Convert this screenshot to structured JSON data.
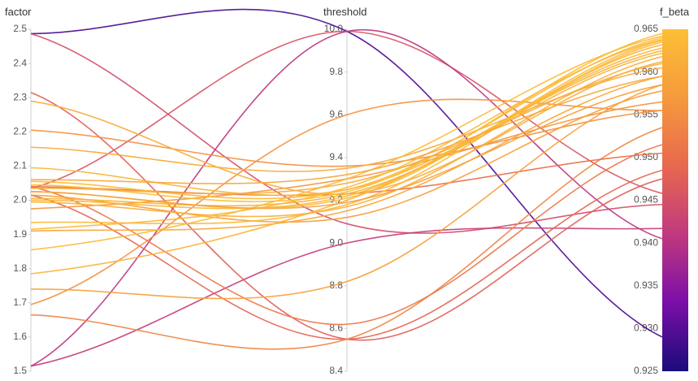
{
  "chart_data": {
    "type": "parallel_coordinates",
    "axes": [
      {
        "name": "factor",
        "range": [
          1.5,
          2.5
        ],
        "ticks": [
          "1.5",
          "1.6",
          "1.7",
          "1.8",
          "1.9",
          "2.0",
          "2.1",
          "2.2",
          "2.3",
          "2.4",
          "2.5"
        ]
      },
      {
        "name": "threshold",
        "range": [
          8.4,
          10.0
        ],
        "ticks": [
          "8.4",
          "8.6",
          "8.8",
          "9.0",
          "9.2",
          "9.4",
          "9.6",
          "9.8",
          "10.0"
        ]
      },
      {
        "name": "f_beta",
        "range": [
          0.925,
          0.965
        ],
        "ticks": [
          "0.925",
          "0.930",
          "0.935",
          "0.940",
          "0.945",
          "0.950",
          "0.955",
          "0.960",
          "0.965"
        ]
      }
    ],
    "color_scale": {
      "axis": "f_beta",
      "stops": [
        "#0d0887",
        "#5b02a3",
        "#9a179b",
        "#cb4678",
        "#eb7852",
        "#fbb32f",
        "#f0f921"
      ],
      "display_stops": [
        "#1a0c7a",
        "#7a0ea8",
        "#c0397e",
        "#e8684f",
        "#f59a3c",
        "#fdbf36"
      ]
    },
    "series": [
      {
        "values": [
          2.487,
          9.99,
          0.929
        ]
      },
      {
        "values": [
          2.487,
          9.09,
          0.9445
        ]
      },
      {
        "values": [
          2.035,
          9.99,
          0.9458
        ]
      },
      {
        "values": [
          1.515,
          9.99,
          0.9405
        ]
      },
      {
        "values": [
          1.515,
          9.0,
          0.9417
        ]
      },
      {
        "values": [
          2.315,
          8.55,
          0.9475
        ]
      },
      {
        "values": [
          2.015,
          8.55,
          0.9485
        ]
      },
      {
        "values": [
          1.665,
          8.55,
          0.9535
        ]
      },
      {
        "values": [
          2.205,
          9.36,
          0.9555
        ]
      },
      {
        "values": [
          1.695,
          9.6,
          0.9555
        ]
      },
      {
        "values": [
          2.04,
          8.62,
          0.9515
        ]
      },
      {
        "values": [
          2.04,
          9.23,
          0.9505
        ]
      },
      {
        "values": [
          1.975,
          9.3,
          0.9565
        ]
      },
      {
        "values": [
          1.74,
          8.82,
          0.9585
        ]
      },
      {
        "values": [
          2.015,
          9.12,
          0.9578
        ]
      },
      {
        "values": [
          1.91,
          9.15,
          0.9595
        ]
      },
      {
        "values": [
          2.29,
          9.23,
          0.9612
        ]
      },
      {
        "values": [
          2.155,
          9.35,
          0.9605
        ]
      },
      {
        "values": [
          1.785,
          9.2,
          0.9625
        ]
      },
      {
        "values": [
          2.095,
          9.25,
          0.9628
        ]
      },
      {
        "values": [
          2.0,
          9.22,
          0.9632
        ]
      },
      {
        "values": [
          1.935,
          9.18,
          0.9635
        ]
      },
      {
        "values": [
          2.025,
          9.21,
          0.9637
        ]
      },
      {
        "values": [
          2.055,
          9.25,
          0.964
        ]
      },
      {
        "values": [
          1.855,
          9.3,
          0.9642
        ]
      },
      {
        "values": [
          2.045,
          9.24,
          0.9645
        ]
      },
      {
        "values": [
          2.005,
          9.23,
          0.9622
        ]
      },
      {
        "values": [
          1.995,
          9.17,
          0.9618
        ]
      },
      {
        "values": [
          2.035,
          9.28,
          0.961
        ]
      },
      {
        "values": [
          1.915,
          9.26,
          0.9638
        ]
      },
      {
        "values": [
          2.025,
          9.19,
          0.9585
        ]
      },
      {
        "values": [
          2.06,
          9.32,
          0.9595
        ]
      }
    ]
  }
}
